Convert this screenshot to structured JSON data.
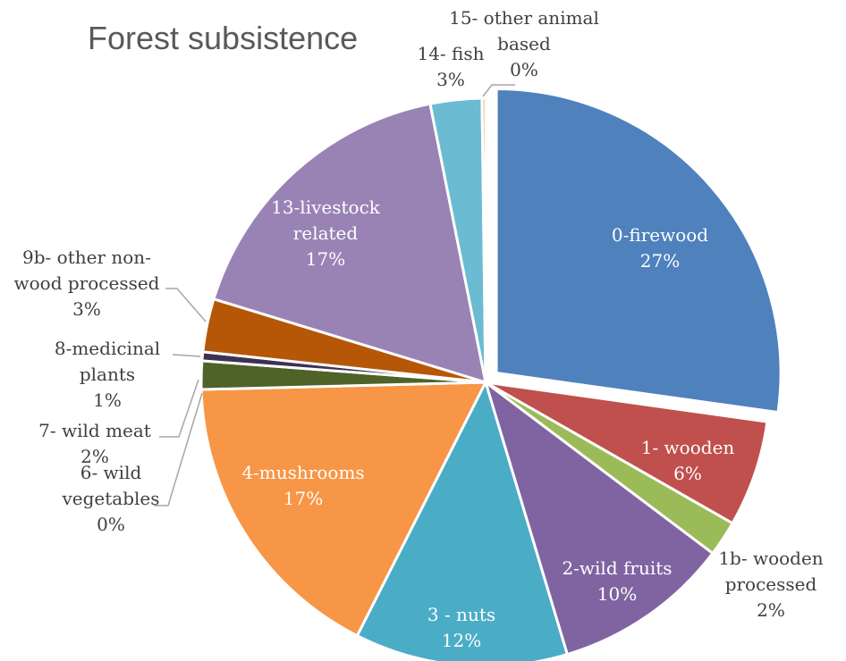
{
  "chart_data": {
    "type": "pie",
    "title": "Forest subsistence",
    "slices": [
      {
        "name": "0-firewood",
        "value": 27,
        "label": "27%",
        "color": "#4f81bd",
        "label_lines": [
          "0-firewood",
          "27%"
        ],
        "inside": true,
        "exploded": true
      },
      {
        "name": "1- wooden",
        "value": 6,
        "label": "6%",
        "color": "#c0504d",
        "label_lines": [
          "1- wooden",
          "6%"
        ],
        "inside": true
      },
      {
        "name": "1b- wooden processed",
        "value": 2,
        "label": "2%",
        "color": "#9bbb59",
        "label_lines": [
          "1b- wooden",
          "processed",
          "2%"
        ],
        "inside": false
      },
      {
        "name": "2-wild fruits",
        "value": 10,
        "label": "10%",
        "color": "#8064a2",
        "label_lines": [
          "2-wild fruits",
          "10%"
        ],
        "inside": true
      },
      {
        "name": "3 - nuts",
        "value": 12,
        "label": "12%",
        "color": "#4bacc6",
        "label_lines": [
          "3 - nuts",
          "12%"
        ],
        "inside": true
      },
      {
        "name": "4-mushrooms",
        "value": 17,
        "label": "17%",
        "color": "#f79646",
        "label_lines": [
          "4-mushrooms",
          "17%"
        ],
        "inside": true
      },
      {
        "name": "6- wild vegetables",
        "value": 0,
        "label": "0%",
        "color": "#2c4d75",
        "label_lines": [
          "6- wild",
          "vegetables",
          "0%"
        ],
        "inside": false
      },
      {
        "name": "7- wild meat",
        "value": 1.6,
        "label": "2%",
        "color": "#4f6228",
        "label_lines": [
          "7- wild meat",
          "2%"
        ],
        "inside": false
      },
      {
        "name": "8-medicinal plants",
        "value": 0.5,
        "label": "1%",
        "color": "#3f3151",
        "label_lines": [
          "8-medicinal",
          "plants",
          "1%"
        ],
        "inside": false
      },
      {
        "name": "9b- other non-wood processed",
        "value": 3,
        "label": "3%",
        "color": "#b65708",
        "label_lines": [
          "9b- other non-",
          "wood processed",
          "3%"
        ],
        "inside": false
      },
      {
        "name": "13-livestock related",
        "value": 17,
        "label": "17%",
        "color": "#9983b5",
        "label_lines": [
          "13-livestock",
          "related",
          "17%"
        ],
        "inside": true
      },
      {
        "name": "14- fish",
        "value": 2.9,
        "label": "3%",
        "color": "#6bbbd2",
        "label_lines": [
          "14- fish",
          "3%"
        ],
        "inside": false
      },
      {
        "name": "15- other animal based",
        "value": 0.2,
        "label": "0%",
        "color": "#f9a869",
        "label_lines": [
          "15- other animal",
          "based",
          "0%"
        ],
        "inside": false
      }
    ]
  }
}
